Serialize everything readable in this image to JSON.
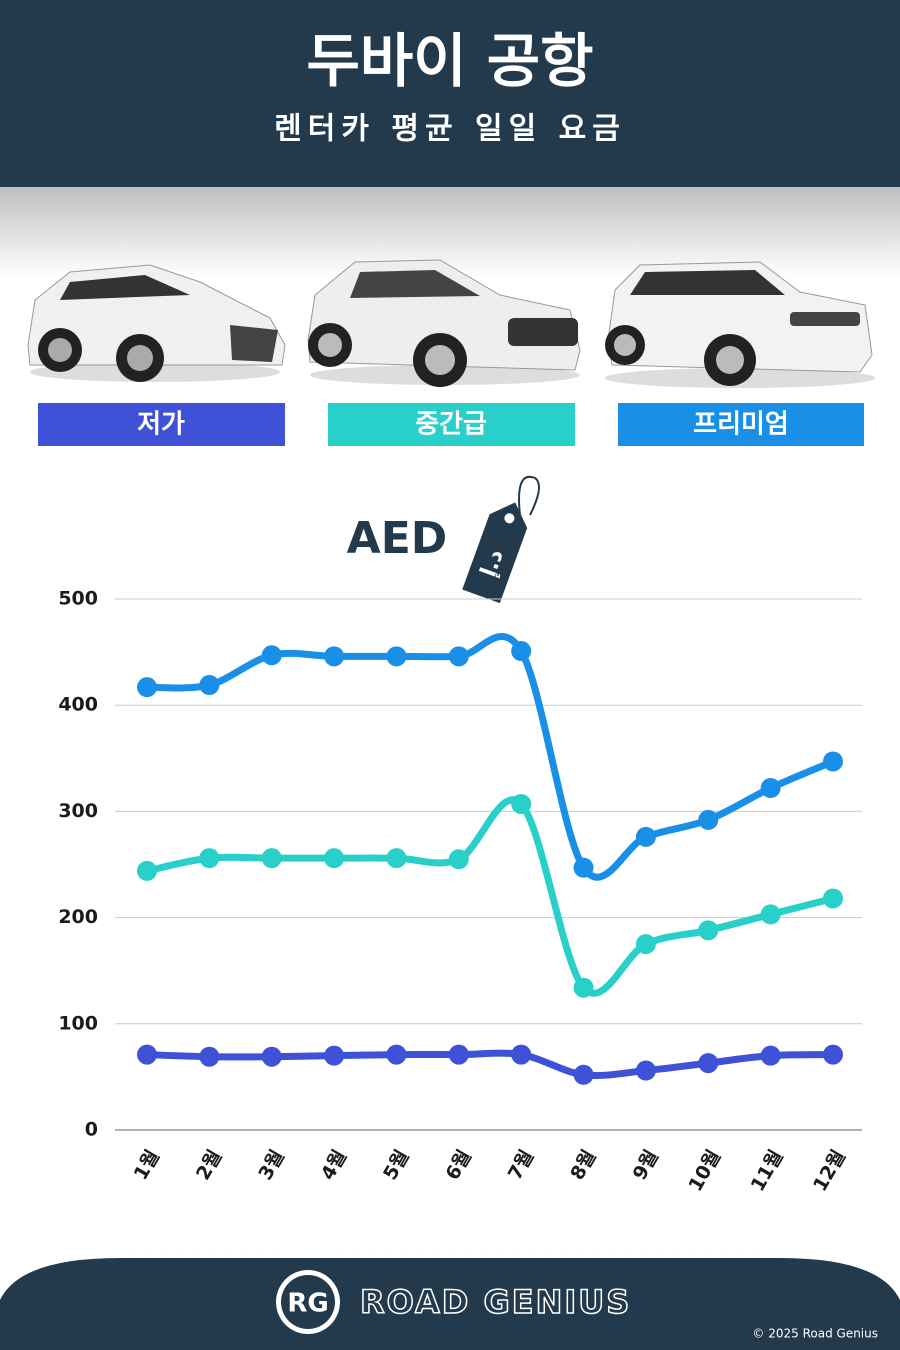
{
  "chart_data": {
    "type": "line",
    "title": "두바이 공항",
    "subtitle": "렌터카 평균 일일 요금",
    "unit_label": "AED",
    "currency_symbol": "د.إ",
    "categories": [
      "1월",
      "2월",
      "3월",
      "4월",
      "5월",
      "6월",
      "7월",
      "8월",
      "9월",
      "10월",
      "11월",
      "12월"
    ],
    "series": [
      {
        "name": "저가",
        "color": "#3f51d6",
        "values": [
          71,
          69,
          69,
          70,
          71,
          71,
          71,
          52,
          56,
          63,
          70,
          71
        ]
      },
      {
        "name": "중간급",
        "color": "#29cfc9",
        "values": [
          244,
          256,
          256,
          256,
          256,
          255,
          307,
          134,
          175,
          188,
          203,
          218
        ]
      },
      {
        "name": "프리미엄",
        "color": "#1a8fe8",
        "values": [
          417,
          419,
          447,
          446,
          446,
          446,
          451,
          247,
          276,
          292,
          322,
          347
        ]
      }
    ],
    "ylim": [
      0,
      500
    ],
    "yticks": [
      0,
      100,
      200,
      300,
      400,
      500
    ],
    "grid": true
  },
  "footer": {
    "logo": "RG",
    "brand": "ROAD GENIUS",
    "copyright": "© 2025 Road Genius"
  }
}
